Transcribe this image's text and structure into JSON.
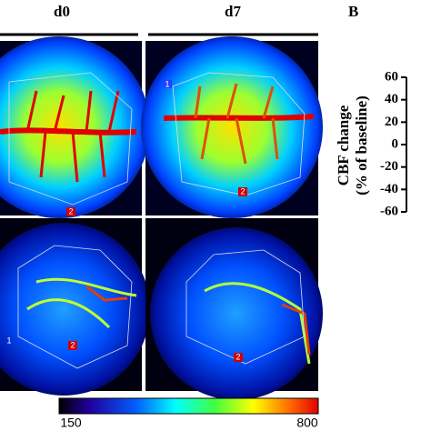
{
  "panel_a": {
    "columns": [
      "d0",
      "d7"
    ],
    "roi_labels": [
      "1",
      "2"
    ],
    "colorbar": {
      "min_label": "150",
      "max_label": "800"
    }
  },
  "panel_b": {
    "label": "B",
    "y_label": [
      "CBF change",
      "(% of baseline)"
    ],
    "ylim": [
      -60,
      60
    ],
    "yticks": [
      60,
      40,
      20,
      0,
      -20,
      -40,
      -60
    ]
  }
}
